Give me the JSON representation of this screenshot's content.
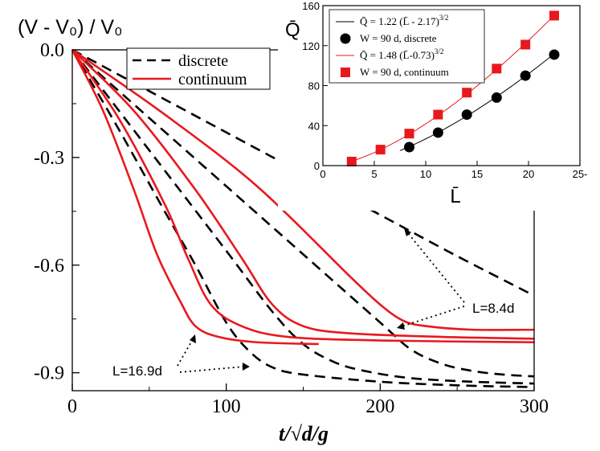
{
  "chart_data": [
    {
      "type": "line",
      "title": "",
      "ylabel": "(V - V0) / V0",
      "xlabel": "t/√(d/g)",
      "xlim": [
        0,
        300
      ],
      "ylim": [
        -0.95,
        0.0
      ],
      "xticks": [
        0,
        100,
        200,
        300
      ],
      "yticks": [
        0.0,
        -0.3,
        -0.6,
        -0.9
      ],
      "ytick_labels": [
        "0.0",
        "-0.3",
        "-0.6",
        "-0.9"
      ],
      "legend": {
        "position": "top-left",
        "entries": [
          {
            "label": "discrete",
            "style": "dashed",
            "color": "#000000"
          },
          {
            "label": "continuum",
            "style": "solid",
            "color": "#e8191e"
          }
        ]
      },
      "annotations": [
        {
          "text": "L=8.4d",
          "at": [
            220,
            -0.765
          ]
        },
        {
          "text": "L=16.9d",
          "at": [
            105,
            -0.845
          ]
        }
      ],
      "series": [
        {
          "name": "discrete L=8.4d",
          "style": "dashed",
          "color": "#000000",
          "x": [
            0,
            50,
            100,
            150,
            200,
            250,
            300
          ],
          "y": [
            0,
            -0.115,
            -0.23,
            -0.345,
            -0.46,
            -0.575,
            -0.685
          ]
        },
        {
          "name": "discrete",
          "style": "dashed",
          "color": "#000000",
          "x": [
            0,
            50,
            100,
            150,
            200,
            220,
            240,
            260,
            280,
            300
          ],
          "y": [
            0,
            -0.19,
            -0.38,
            -0.57,
            -0.76,
            -0.835,
            -0.875,
            -0.895,
            -0.905,
            -0.91
          ]
        },
        {
          "name": "discrete",
          "style": "dashed",
          "color": "#000000",
          "x": [
            0,
            50,
            100,
            130,
            150,
            170,
            190,
            220,
            260,
            300
          ],
          "y": [
            0,
            -0.28,
            -0.56,
            -0.73,
            -0.82,
            -0.87,
            -0.895,
            -0.915,
            -0.925,
            -0.93
          ]
        },
        {
          "name": "discrete L=16.9d",
          "style": "dashed",
          "color": "#000000",
          "x": [
            0,
            30,
            60,
            80,
            100,
            115,
            130,
            150,
            200,
            250,
            300
          ],
          "y": [
            0,
            -0.22,
            -0.45,
            -0.6,
            -0.76,
            -0.84,
            -0.885,
            -0.905,
            -0.925,
            -0.935,
            -0.94
          ]
        },
        {
          "name": "continuum L=8.4d",
          "style": "solid",
          "color": "#e8191e",
          "x": [
            0,
            60,
            120,
            180,
            200,
            215,
            230,
            260,
            300
          ],
          "y": [
            0,
            -0.18,
            -0.38,
            -0.63,
            -0.71,
            -0.755,
            -0.77,
            -0.78,
            -0.78
          ]
        },
        {
          "name": "continuum",
          "style": "solid",
          "color": "#e8191e",
          "x": [
            0,
            40,
            80,
            110,
            130,
            150,
            180,
            240,
            300
          ],
          "y": [
            0,
            -0.17,
            -0.39,
            -0.58,
            -0.71,
            -0.77,
            -0.79,
            -0.8,
            -0.805
          ]
        },
        {
          "name": "continuum",
          "style": "solid",
          "color": "#e8191e",
          "x": [
            0,
            30,
            60,
            75,
            90,
            110,
            140,
            200,
            300
          ],
          "y": [
            0,
            -0.19,
            -0.43,
            -0.58,
            -0.71,
            -0.77,
            -0.8,
            -0.81,
            -0.815
          ]
        },
        {
          "name": "continuum L=16.9d",
          "style": "solid",
          "color": "#e8191e",
          "x": [
            0,
            20,
            40,
            55,
            70,
            80,
            95,
            120,
            160
          ],
          "y": [
            0,
            -0.17,
            -0.39,
            -0.57,
            -0.7,
            -0.77,
            -0.8,
            -0.815,
            -0.82
          ]
        }
      ]
    },
    {
      "type": "scatter",
      "title": "",
      "xlabel": "L̄",
      "ylabel": "Q̄",
      "xlim": [
        0,
        25
      ],
      "ylim": [
        0,
        160
      ],
      "xticks": [
        0,
        5,
        10,
        15,
        20,
        25
      ],
      "xtick_labels": [
        "0",
        "5",
        "10",
        "15",
        "20",
        "25-"
      ],
      "yticks": [
        0,
        40,
        80,
        120,
        160
      ],
      "legend": {
        "position": "top-left",
        "entries": [
          {
            "label": "Q̄ = 1.22 (L̄ - 2.17)",
            "sup": "3/2",
            "style": "line",
            "color": "#000000"
          },
          {
            "label": "W =  90 d, discrete",
            "style": "circle",
            "color": "#000000"
          },
          {
            "label": "Q̄ = 1.48 (L̄-0.73)",
            "sup": "3/2",
            "style": "line",
            "color": "#e8191e"
          },
          {
            "label": "W = 90 d, continuum",
            "style": "square",
            "color": "#e8191e"
          }
        ]
      },
      "series": [
        {
          "name": "W = 90 d, discrete",
          "marker": "circle",
          "color": "#000000",
          "x": [
            8.4,
            11.2,
            14.0,
            16.9,
            19.7,
            22.5
          ],
          "y": [
            18.5,
            33,
            51,
            68,
            90,
            111
          ]
        },
        {
          "name": "W = 90 d, continuum",
          "marker": "square",
          "color": "#e8191e",
          "x": [
            2.8,
            5.6,
            8.4,
            11.2,
            14.0,
            16.9,
            19.7,
            22.5
          ],
          "y": [
            4,
            16,
            32,
            51,
            73,
            97,
            121,
            150
          ]
        },
        {
          "name": "fit discrete",
          "fit": {
            "a": 1.22,
            "b": 2.17
          },
          "color": "#000000",
          "x_range": [
            7.5,
            22.5
          ]
        },
        {
          "name": "fit continuum",
          "fit": {
            "a": 1.48,
            "b": 0.73
          },
          "color": "#e8191e",
          "x_range": [
            2.5,
            22.5
          ]
        }
      ]
    }
  ]
}
